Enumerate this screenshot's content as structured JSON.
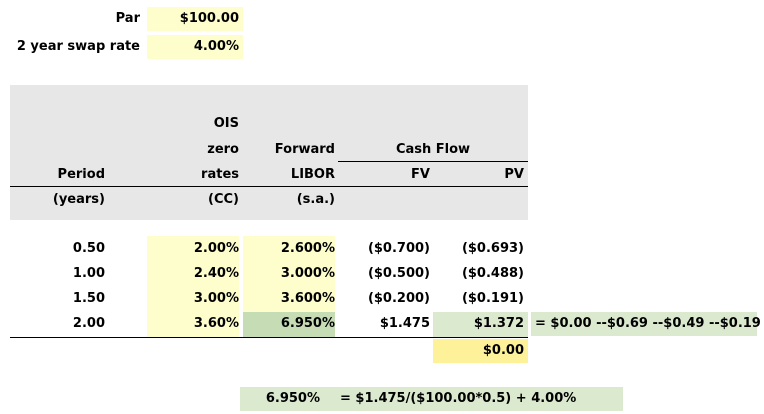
{
  "inputs": {
    "par_label": "Par",
    "par_value": "$100.00",
    "swap_label": "2 year swap rate",
    "swap_value": "4.00%"
  },
  "headers": {
    "period": "Period",
    "period_unit": "(years)",
    "ois_line1": "OIS",
    "ois_line2": "zero",
    "ois_line3": "rates",
    "ois_unit": "(CC)",
    "fwd_line1": "Forward",
    "fwd_line2": "LIBOR",
    "fwd_unit": "(s.a.)",
    "cashflow": "Cash Flow",
    "fv": "FV",
    "pv": "PV"
  },
  "rows": [
    {
      "period": "0.50",
      "ois": "2.00%",
      "libor": "2.600%",
      "fv": "($0.700)",
      "pv": "($0.693)"
    },
    {
      "period": "1.00",
      "ois": "2.40%",
      "libor": "3.000%",
      "fv": "($0.500)",
      "pv": "($0.488)"
    },
    {
      "period": "1.50",
      "ois": "3.00%",
      "libor": "3.600%",
      "fv": "($0.200)",
      "pv": "($0.191)"
    },
    {
      "period": "2.00",
      "ois": "3.60%",
      "libor": "6.950%",
      "fv": "$1.475",
      "pv": "$1.372"
    }
  ],
  "pv_formula": "= $0.00 --$0.69 --$0.49 --$0.19",
  "pv_total": "$0.00",
  "bottom": {
    "value": "6.950%",
    "formula": "= $1.475/($100.00*0.5) + 4.00%"
  },
  "colors": {
    "input_fill": "#fefecd",
    "total_fill": "#fdf19a",
    "solution_fill": "#c6dcb5",
    "formula_fill": "#dbe9cf",
    "header_fill": "#e7e7e7"
  }
}
